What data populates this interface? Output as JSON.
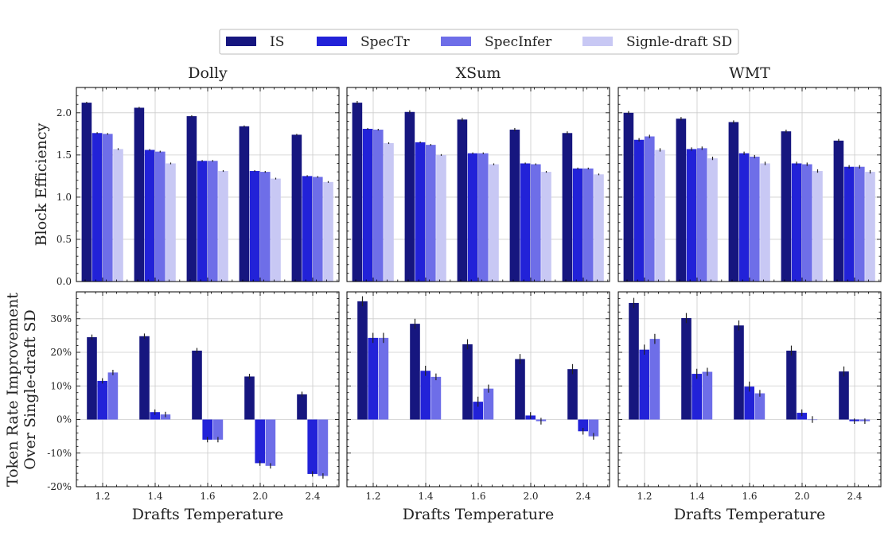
{
  "colors": {
    "IS": "#16167f",
    "SpecTr": "#2222d8",
    "SpecInfer": "#6e6ee8",
    "Signle-draft SD": "#c8c8f4"
  },
  "legend": {
    "items": [
      "IS",
      "SpecTr",
      "SpecInfer",
      "Signle-draft SD"
    ],
    "placement": "top-center"
  },
  "chart_data": [
    {
      "type": "bar",
      "title": "Dolly",
      "row": "top",
      "xlabel": "",
      "ylabel": "Block Efficiency",
      "categories": [
        "1.2",
        "1.4",
        "1.6",
        "2.0",
        "2.4"
      ],
      "ylim": [
        0,
        2.3
      ],
      "yticks": [
        "0.0",
        "0.5",
        "1.0",
        "1.5",
        "2.0"
      ],
      "grid": true,
      "series": [
        {
          "name": "IS",
          "values": [
            2.12,
            2.06,
            1.96,
            1.84,
            1.74
          ],
          "err": [
            0.01,
            0.01,
            0.01,
            0.01,
            0.01
          ]
        },
        {
          "name": "SpecTr",
          "values": [
            1.76,
            1.56,
            1.43,
            1.31,
            1.25
          ],
          "err": [
            0.01,
            0.01,
            0.01,
            0.01,
            0.01
          ]
        },
        {
          "name": "SpecInfer",
          "values": [
            1.75,
            1.54,
            1.43,
            1.3,
            1.24
          ],
          "err": [
            0.01,
            0.01,
            0.01,
            0.01,
            0.01
          ]
        },
        {
          "name": "Signle-draft SD",
          "values": [
            1.57,
            1.4,
            1.31,
            1.22,
            1.18
          ],
          "err": [
            0.01,
            0.01,
            0.01,
            0.01,
            0.01
          ]
        }
      ]
    },
    {
      "type": "bar",
      "title": "XSum",
      "row": "top",
      "xlabel": "",
      "ylabel": "",
      "categories": [
        "1.2",
        "1.4",
        "1.6",
        "2.0",
        "2.4"
      ],
      "ylim": [
        0,
        2.3
      ],
      "yticks": [],
      "grid": true,
      "series": [
        {
          "name": "IS",
          "values": [
            2.12,
            2.01,
            1.92,
            1.8,
            1.76
          ],
          "err": [
            0.02,
            0.02,
            0.02,
            0.02,
            0.02
          ]
        },
        {
          "name": "SpecTr",
          "values": [
            1.81,
            1.65,
            1.52,
            1.4,
            1.34
          ],
          "err": [
            0.01,
            0.01,
            0.01,
            0.01,
            0.01
          ]
        },
        {
          "name": "SpecInfer",
          "values": [
            1.8,
            1.62,
            1.52,
            1.39,
            1.34
          ],
          "err": [
            0.01,
            0.01,
            0.01,
            0.01,
            0.01
          ]
        },
        {
          "name": "Signle-draft SD",
          "values": [
            1.64,
            1.5,
            1.39,
            1.3,
            1.27
          ],
          "err": [
            0.01,
            0.01,
            0.01,
            0.01,
            0.01
          ]
        }
      ]
    },
    {
      "type": "bar",
      "title": "WMT",
      "row": "top",
      "xlabel": "",
      "ylabel": "",
      "categories": [
        "1.2",
        "1.4",
        "1.6",
        "2.0",
        "2.4"
      ],
      "ylim": [
        0,
        2.3
      ],
      "yticks": [],
      "grid": true,
      "series": [
        {
          "name": "IS",
          "values": [
            2.0,
            1.93,
            1.89,
            1.78,
            1.67
          ],
          "err": [
            0.02,
            0.02,
            0.02,
            0.02,
            0.02
          ]
        },
        {
          "name": "SpecTr",
          "values": [
            1.68,
            1.57,
            1.52,
            1.4,
            1.36
          ],
          "err": [
            0.02,
            0.02,
            0.02,
            0.02,
            0.02
          ]
        },
        {
          "name": "SpecInfer",
          "values": [
            1.72,
            1.58,
            1.48,
            1.39,
            1.36
          ],
          "err": [
            0.02,
            0.02,
            0.02,
            0.02,
            0.02
          ]
        },
        {
          "name": "Signle-draft SD",
          "values": [
            1.56,
            1.46,
            1.4,
            1.31,
            1.3
          ],
          "err": [
            0.02,
            0.02,
            0.02,
            0.02,
            0.02
          ]
        }
      ]
    },
    {
      "type": "bar",
      "title": "",
      "row": "bottom",
      "xlabel": "Drafts Temperature",
      "ylabel": "Token Rate Improvement Over Single-draft SD",
      "categories": [
        "1.2",
        "1.4",
        "1.6",
        "2.0",
        "2.4"
      ],
      "ylim": [
        -20,
        38
      ],
      "yticks": [
        "-20%",
        "-10%",
        "0%",
        "10%",
        "20%",
        "30%"
      ],
      "grid": true,
      "series": [
        {
          "name": "IS",
          "values": [
            24.5,
            24.8,
            20.5,
            12.8,
            7.5
          ],
          "err": [
            0.8,
            0.8,
            0.8,
            0.8,
            0.8
          ]
        },
        {
          "name": "SpecTr",
          "values": [
            11.5,
            2.2,
            -6.0,
            -13.0,
            -16.2
          ],
          "err": [
            0.8,
            0.8,
            0.8,
            0.8,
            0.8
          ]
        },
        {
          "name": "SpecInfer",
          "values": [
            14.0,
            1.5,
            -6.0,
            -13.8,
            -16.8
          ],
          "err": [
            0.8,
            0.8,
            0.8,
            0.8,
            0.8
          ]
        }
      ]
    },
    {
      "type": "bar",
      "title": "",
      "row": "bottom",
      "xlabel": "Drafts Temperature",
      "ylabel": "",
      "categories": [
        "1.2",
        "1.4",
        "1.6",
        "2.0",
        "2.4"
      ],
      "ylim": [
        -20,
        38
      ],
      "yticks": [],
      "grid": true,
      "series": [
        {
          "name": "IS",
          "values": [
            35.2,
            28.5,
            22.4,
            18.0,
            15.0
          ],
          "err": [
            1.5,
            1.5,
            1.5,
            1.5,
            1.5
          ]
        },
        {
          "name": "SpecTr",
          "values": [
            24.3,
            14.5,
            5.3,
            1.2,
            -3.5
          ],
          "err": [
            1.5,
            1.5,
            1.5,
            1.0,
            1.0
          ]
        },
        {
          "name": "SpecInfer",
          "values": [
            24.3,
            12.7,
            9.2,
            -0.5,
            -5.0
          ],
          "err": [
            1.5,
            1.0,
            1.2,
            1.0,
            1.0
          ]
        }
      ]
    },
    {
      "type": "bar",
      "title": "",
      "row": "bottom",
      "xlabel": "Drafts Temperature",
      "ylabel": "",
      "categories": [
        "1.2",
        "1.4",
        "1.6",
        "2.0",
        "2.4"
      ],
      "ylim": [
        -20,
        38
      ],
      "yticks": [],
      "grid": true,
      "series": [
        {
          "name": "IS",
          "values": [
            34.7,
            30.2,
            28.0,
            20.5,
            14.3
          ],
          "err": [
            1.5,
            1.5,
            1.5,
            1.5,
            1.5
          ]
        },
        {
          "name": "SpecTr",
          "values": [
            20.8,
            13.6,
            9.8,
            2.0,
            -0.5
          ],
          "err": [
            1.5,
            1.5,
            1.5,
            1.0,
            0.8
          ]
        },
        {
          "name": "SpecInfer",
          "values": [
            24.0,
            14.2,
            7.8,
            0.0,
            -0.5
          ],
          "err": [
            1.5,
            1.2,
            1.0,
            1.0,
            0.8
          ]
        }
      ]
    }
  ]
}
